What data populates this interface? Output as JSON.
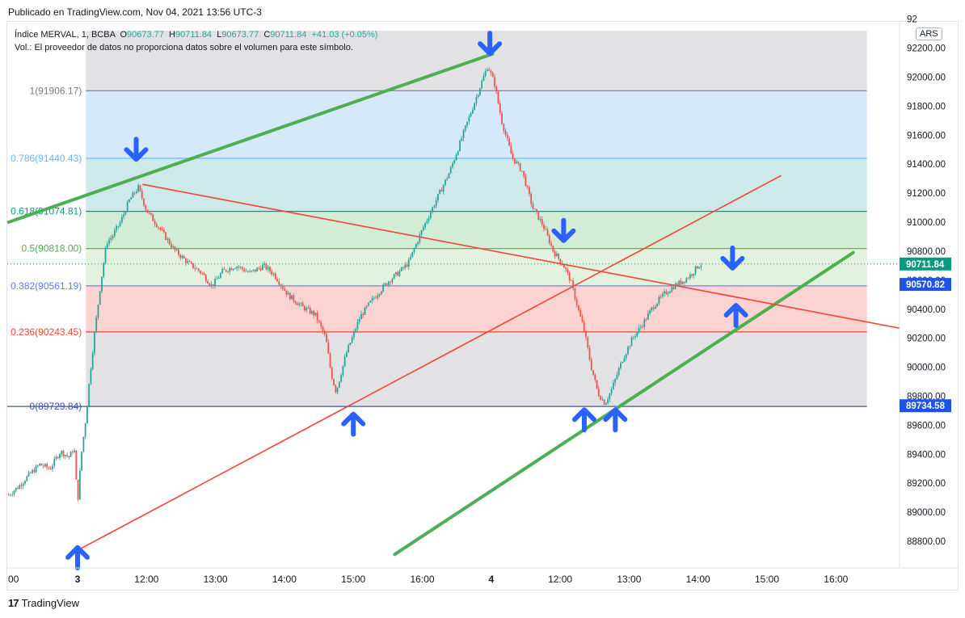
{
  "header": {
    "published": "Publicado en TradingView.com, Nov 04, 2021 13:56 UTC-3"
  },
  "legend": {
    "symbol": "Índice MERVAL, 1, BCBA",
    "o_label": "O",
    "o": "90673.77",
    "h_label": "H",
    "h": "90711.84",
    "l_label": "L",
    "l": "90673.77",
    "c_label": "C",
    "c": "90711.84",
    "change": "+41.03 (+0.05%)",
    "volume_note": "Vol.: El proveedor de datos no proporciona datos sobre el volumen para este símbolo."
  },
  "currency_badge": "ARS",
  "brand": {
    "logo": "17",
    "name": "TradingView"
  },
  "colors": {
    "up": "#26a69a",
    "down": "#ef5350",
    "arrow": "#2962ff",
    "trend_green": "#4caf50",
    "trend_red": "#f44336",
    "trend_brown": "#c0504d"
  },
  "chart_data": {
    "type": "candlestick",
    "y_axis": {
      "range": [
        88650,
        92320
      ],
      "ticks": [
        "88800.00",
        "89000.00",
        "89200.00",
        "89400.00",
        "89600.00",
        "89800.00",
        "90000.00",
        "90200.00",
        "90400.00",
        "90600.00",
        "90800.00",
        "91000.00",
        "91200.00",
        "91400.00",
        "91600.00",
        "91800.00",
        "92000.00",
        "92200.00"
      ],
      "top_tick_partial": "92"
    },
    "x_axis": {
      "ticks": [
        {
          "label": "00",
          "t": -0.93
        },
        {
          "label": "3",
          "t": 0
        },
        {
          "label": "12:00",
          "t": 1
        },
        {
          "label": "13:00",
          "t": 2
        },
        {
          "label": "14:00",
          "t": 3
        },
        {
          "label": "15:00",
          "t": 4
        },
        {
          "label": "16:00",
          "t": 5
        },
        {
          "label": "4",
          "t": 6
        },
        {
          "label": "12:00",
          "t": 7
        },
        {
          "label": "13:00",
          "t": 8
        },
        {
          "label": "14:00",
          "t": 9
        },
        {
          "label": "15:00",
          "t": 10
        },
        {
          "label": "16:00",
          "t": 11
        }
      ]
    },
    "fibonacci": {
      "t_start": 0.12,
      "t_end": 11.45,
      "levels": [
        {
          "label": "1(91906.17)",
          "value": 91906.17,
          "color": "#787b86",
          "fill": "#d6e9fb"
        },
        {
          "label": "0.786(91440.43)",
          "value": 91440.43,
          "color": "#64b5f6",
          "fill": "#cde9ea"
        },
        {
          "label": "0.618(91074.81)",
          "value": 91074.81,
          "color": "#089981",
          "fill": "#d3ecd6"
        },
        {
          "label": "0.5(90818.00)",
          "value": 90818.0,
          "color": "#4caf50",
          "fill": "#e2f2de"
        },
        {
          "label": "0.382(90561.19)",
          "value": 90561.19,
          "color": "#5c7cfa",
          "fill": "#fbd3d0"
        },
        {
          "label": "0.236(90243.45)",
          "value": 90243.45,
          "color": "#f44336",
          "fill": "#e2e2e4"
        },
        {
          "label": "0(89729.84)",
          "value": 89729.84,
          "color": "#3f51b5",
          "fill": null
        }
      ],
      "gray_top": 92320
    },
    "price_badges": [
      {
        "label": "90711.84",
        "value": 90711.84,
        "color": "#089981"
      },
      {
        "label": "90570.82",
        "value": 90570.82,
        "color": "#1e53e5"
      },
      {
        "label": "89734.58",
        "value": 89734.58,
        "color": "#1e53e5"
      }
    ],
    "current_price": 90711.84,
    "trendlines": [
      {
        "name": "upper-green",
        "color": "#4caf50",
        "width": 4,
        "p1": [
          -1,
          91000
        ],
        "p2": [
          6.02,
          92160
        ]
      },
      {
        "name": "lower-green",
        "color": "#4caf50",
        "width": 4,
        "p1": [
          4.6,
          88710
        ],
        "p2": [
          11.25,
          90790
        ]
      },
      {
        "name": "red-support",
        "color": "#f44336",
        "width": 1.6,
        "p1": [
          -0.15,
          88700
        ],
        "p2": [
          10.2,
          91320
        ]
      },
      {
        "name": "red-resistance",
        "color": "#f44336",
        "width": 1.6,
        "p1": [
          0.95,
          91260
        ],
        "p2": [
          12.25,
          90240
        ]
      }
    ],
    "arrows": [
      {
        "dir": "down",
        "t": 0.85,
        "price": 91500
      },
      {
        "dir": "down",
        "t": 5.98,
        "price": 92230
      },
      {
        "dir": "down",
        "t": 7.05,
        "price": 90940
      },
      {
        "dir": "down",
        "t": 9.5,
        "price": 90750
      },
      {
        "dir": "up",
        "t": 4.0,
        "price": 89610
      },
      {
        "dir": "up",
        "t": 7.35,
        "price": 89640
      },
      {
        "dir": "up",
        "t": 7.8,
        "price": 89640
      },
      {
        "dir": "up",
        "t": 9.55,
        "price": 90360
      },
      {
        "dir": "up",
        "t": 0.0,
        "price": 88690
      }
    ],
    "price_path": [
      [
        -1.0,
        89120
      ],
      [
        -0.85,
        89180
      ],
      [
        -0.7,
        89260
      ],
      [
        -0.55,
        89330
      ],
      [
        -0.4,
        89300
      ],
      [
        -0.25,
        89420
      ],
      [
        -0.12,
        89380
      ],
      [
        -0.05,
        89450
      ],
      [
        0.0,
        89060
      ],
      [
        0.05,
        89380
      ],
      [
        0.12,
        89650
      ],
      [
        0.18,
        89950
      ],
      [
        0.25,
        90250
      ],
      [
        0.33,
        90560
      ],
      [
        0.42,
        90860
      ],
      [
        0.5,
        90900
      ],
      [
        0.62,
        91000
      ],
      [
        0.75,
        91150
      ],
      [
        0.88,
        91240
      ],
      [
        1.0,
        91080
      ],
      [
        1.2,
        90950
      ],
      [
        1.4,
        90810
      ],
      [
        1.6,
        90720
      ],
      [
        1.8,
        90650
      ],
      [
        1.95,
        90560
      ],
      [
        2.1,
        90660
      ],
      [
        2.3,
        90700
      ],
      [
        2.5,
        90650
      ],
      [
        2.7,
        90700
      ],
      [
        2.85,
        90640
      ],
      [
        3.05,
        90500
      ],
      [
        3.25,
        90420
      ],
      [
        3.45,
        90360
      ],
      [
        3.6,
        90200
      ],
      [
        3.68,
        89950
      ],
      [
        3.75,
        89830
      ],
      [
        3.9,
        90100
      ],
      [
        4.1,
        90350
      ],
      [
        4.3,
        90480
      ],
      [
        4.5,
        90590
      ],
      [
        4.65,
        90650
      ],
      [
        4.8,
        90720
      ],
      [
        5.0,
        90950
      ],
      [
        5.2,
        91150
      ],
      [
        5.4,
        91350
      ],
      [
        5.55,
        91550
      ],
      [
        5.7,
        91750
      ],
      [
        5.85,
        91950
      ],
      [
        5.95,
        92080
      ],
      [
        6.05,
        91950
      ],
      [
        6.15,
        91700
      ],
      [
        6.3,
        91450
      ],
      [
        6.45,
        91350
      ],
      [
        6.6,
        91100
      ],
      [
        6.75,
        90980
      ],
      [
        6.9,
        90800
      ],
      [
        7.05,
        90700
      ],
      [
        7.15,
        90600
      ],
      [
        7.25,
        90420
      ],
      [
        7.35,
        90250
      ],
      [
        7.45,
        90000
      ],
      [
        7.55,
        89820
      ],
      [
        7.65,
        89750
      ],
      [
        7.75,
        89850
      ],
      [
        7.9,
        90050
      ],
      [
        8.05,
        90200
      ],
      [
        8.2,
        90300
      ],
      [
        8.35,
        90420
      ],
      [
        8.5,
        90500
      ],
      [
        8.65,
        90560
      ],
      [
        8.8,
        90600
      ],
      [
        8.9,
        90640
      ],
      [
        9.0,
        90700
      ],
      [
        9.05,
        90711.84
      ]
    ]
  }
}
